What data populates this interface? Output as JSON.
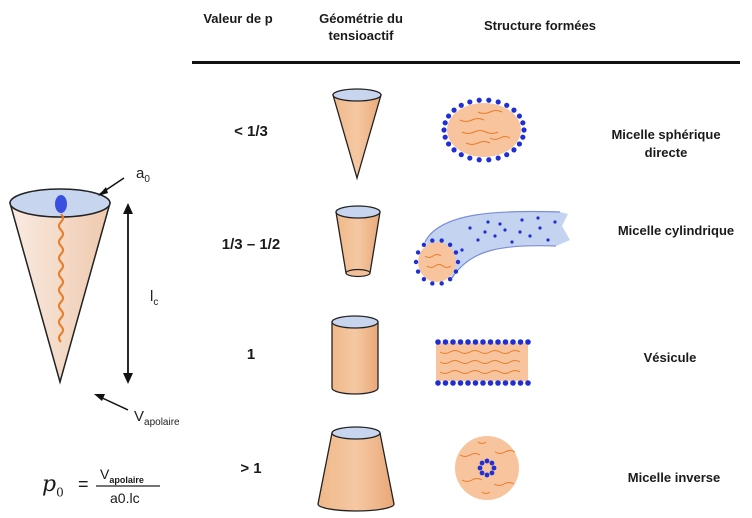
{
  "headers": {
    "valeur": "Valeur de p",
    "geometrie": "Géométrie du tensioactif",
    "structure": "Structure formées"
  },
  "rows": [
    {
      "p": "< 1/3",
      "structure": "Micelle sphérique directe"
    },
    {
      "p": "1/3 – 1/2",
      "structure": "Micelle cylindrique"
    },
    {
      "p": "1",
      "structure": "Vésicule"
    },
    {
      "p": "> 1",
      "structure": "Micelle inverse"
    }
  ],
  "cone_labels": {
    "a0": "a",
    "a0_sub": "0",
    "lc": "l",
    "lc_sub": "c",
    "v": "V",
    "v_sub": "apolaire"
  },
  "formula": {
    "lhs": "p",
    "lhs_sub": "0",
    "eq": "=",
    "num": "V",
    "num_sub": "apolaire",
    "den": "a0.lc"
  },
  "colors": {
    "cone_fill": "#f5c9a8",
    "cone_left": "#f7e4d9",
    "head_blue": "#3a4fe0",
    "top_ellipse": "#c9d8ee",
    "tail_orange": "#e87d2a",
    "tube": "#bfcfee"
  }
}
